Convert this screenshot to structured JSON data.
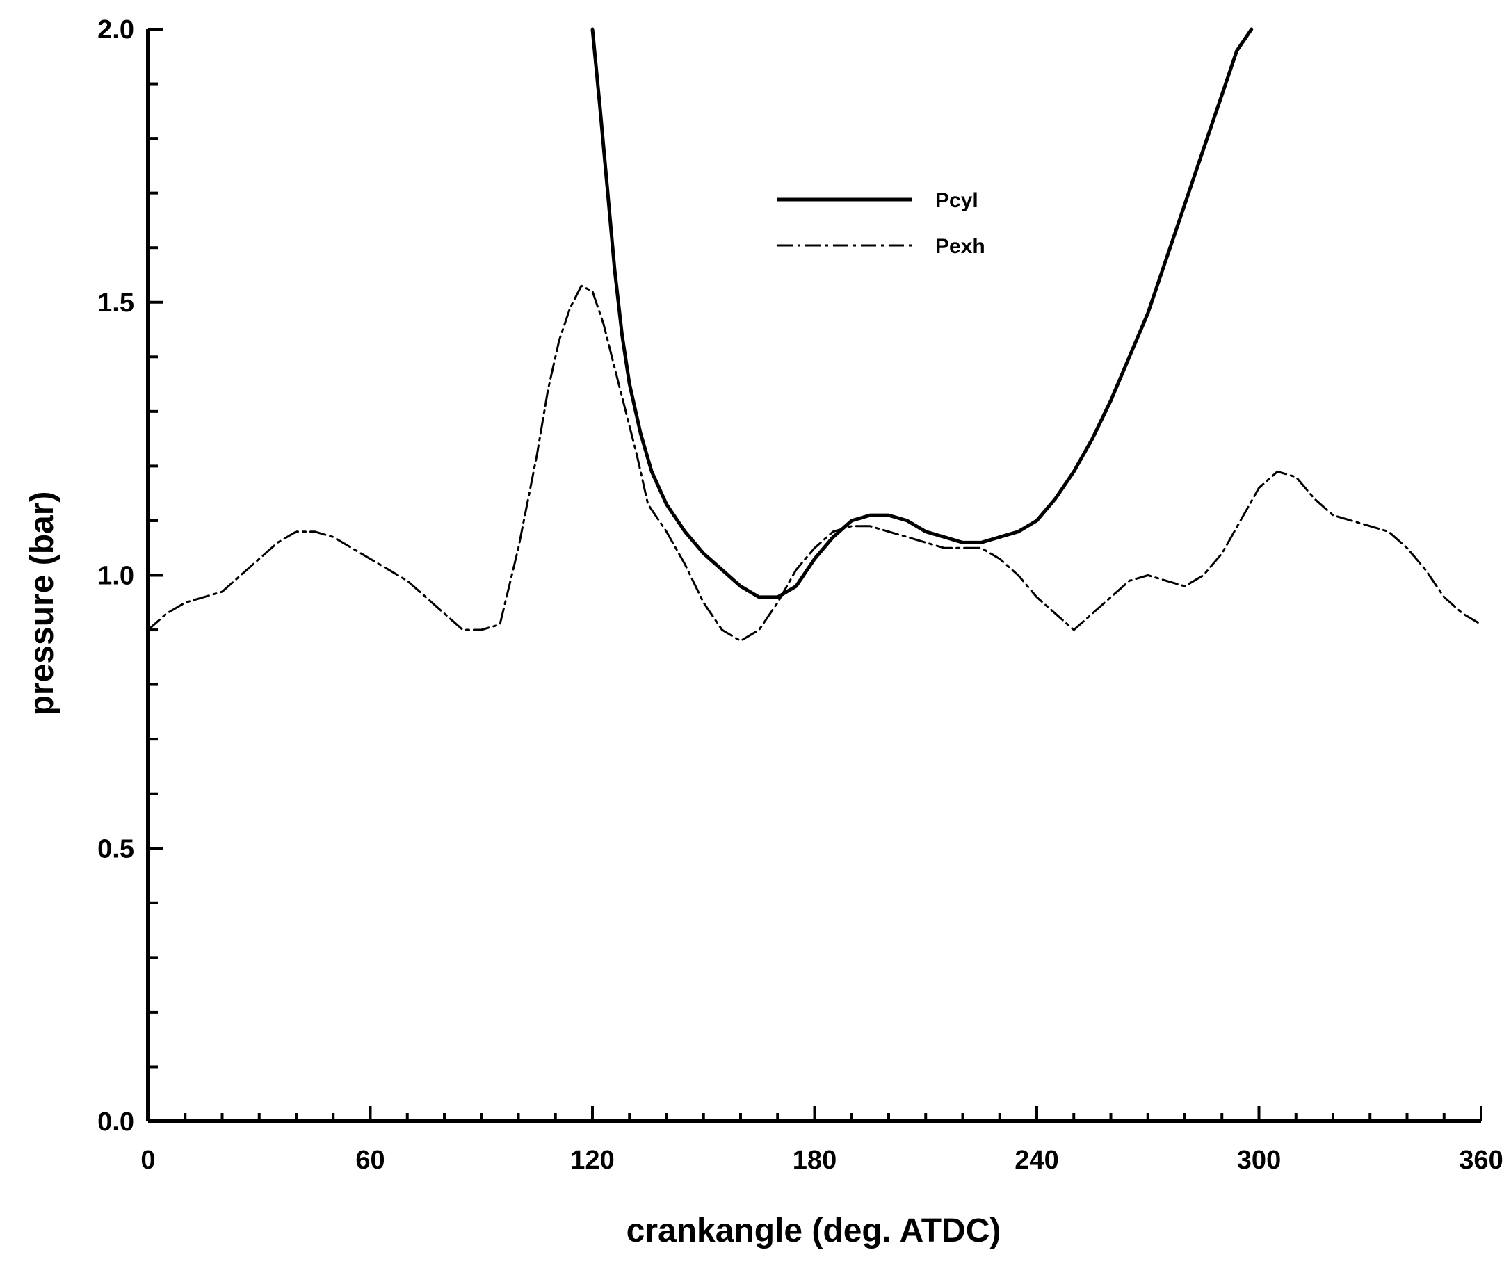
{
  "chart_data": {
    "type": "line",
    "xlabel": "crankangle   (deg. ATDC)",
    "ylabel": "pressure   (bar)",
    "xlim": [
      0,
      360
    ],
    "ylim": [
      0,
      2.0
    ],
    "x_ticks": [
      "0",
      "60",
      "120",
      "180",
      "240",
      "300",
      "360"
    ],
    "x_tick_values": [
      0,
      60,
      120,
      180,
      240,
      300,
      360
    ],
    "y_ticks": [
      "0.0",
      "0.5",
      "1.0",
      "1.5",
      "2.0"
    ],
    "y_tick_values": [
      0,
      0.5,
      1.0,
      1.5,
      2.0
    ],
    "grid": false,
    "legend_position": "top-center",
    "series": [
      {
        "name": "Pcyl",
        "style": "solid",
        "x": [
          120,
          122,
          124,
          126,
          128,
          130,
          133,
          136,
          140,
          145,
          150,
          155,
          160,
          165,
          170,
          175,
          180,
          185,
          190,
          195,
          200,
          205,
          210,
          215,
          220,
          225,
          230,
          235,
          240,
          245,
          250,
          255,
          260,
          265,
          270,
          275,
          280,
          285,
          290,
          294,
          298
        ],
        "y": [
          2.0,
          1.86,
          1.71,
          1.56,
          1.44,
          1.35,
          1.26,
          1.19,
          1.13,
          1.08,
          1.04,
          1.01,
          0.98,
          0.96,
          0.96,
          0.98,
          1.03,
          1.07,
          1.1,
          1.11,
          1.11,
          1.1,
          1.08,
          1.07,
          1.06,
          1.06,
          1.07,
          1.08,
          1.1,
          1.14,
          1.19,
          1.25,
          1.32,
          1.4,
          1.48,
          1.58,
          1.68,
          1.78,
          1.88,
          1.96,
          2.0
        ]
      },
      {
        "name": "Pexh",
        "style": "dash-dot",
        "x": [
          0,
          5,
          10,
          15,
          20,
          25,
          30,
          35,
          40,
          45,
          50,
          55,
          60,
          65,
          70,
          75,
          80,
          85,
          90,
          95,
          100,
          105,
          108,
          111,
          114,
          117,
          120,
          123,
          126,
          129,
          132,
          135,
          140,
          145,
          150,
          155,
          160,
          165,
          170,
          175,
          180,
          185,
          190,
          195,
          200,
          205,
          210,
          215,
          220,
          225,
          230,
          235,
          240,
          245,
          250,
          255,
          260,
          265,
          270,
          275,
          280,
          285,
          290,
          295,
          300,
          305,
          310,
          315,
          320,
          325,
          330,
          335,
          340,
          345,
          350,
          355,
          360
        ],
        "y": [
          0.9,
          0.93,
          0.95,
          0.96,
          0.97,
          1.0,
          1.03,
          1.06,
          1.08,
          1.08,
          1.07,
          1.05,
          1.03,
          1.01,
          0.99,
          0.96,
          0.93,
          0.9,
          0.9,
          0.91,
          1.05,
          1.22,
          1.34,
          1.43,
          1.49,
          1.53,
          1.52,
          1.46,
          1.38,
          1.3,
          1.22,
          1.13,
          1.08,
          1.02,
          0.95,
          0.9,
          0.88,
          0.9,
          0.95,
          1.01,
          1.05,
          1.08,
          1.09,
          1.09,
          1.08,
          1.07,
          1.06,
          1.05,
          1.05,
          1.05,
          1.03,
          1.0,
          0.96,
          0.93,
          0.9,
          0.93,
          0.96,
          0.99,
          1.0,
          0.99,
          0.98,
          1.0,
          1.04,
          1.1,
          1.16,
          1.19,
          1.18,
          1.14,
          1.11,
          1.1,
          1.09,
          1.08,
          1.05,
          1.01,
          0.96,
          0.93,
          0.91
        ]
      }
    ]
  },
  "colors": {
    "ink": "#000000",
    "background": "#ffffff"
  }
}
